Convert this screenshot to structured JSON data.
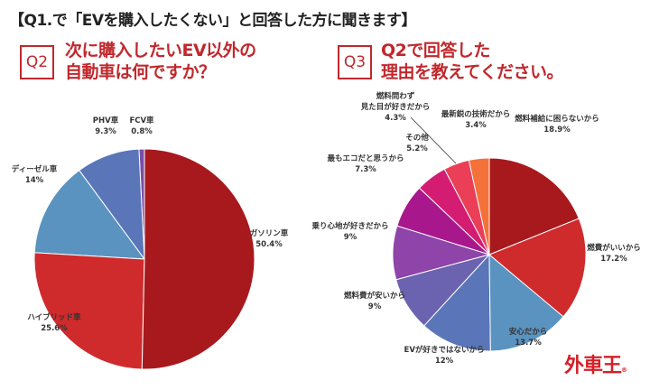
{
  "header": {
    "title": "【Q1.で「EVを購入したくない」と回答した方に聞きます】"
  },
  "q2": {
    "badge": "Q2",
    "line1": "次に購入したいEV以外の",
    "line2": "自動車は何ですか？"
  },
  "q3": {
    "badge": "Q3",
    "line1": "Q2で回答した",
    "line2": "理由を教えてください。"
  },
  "logo": {
    "text": "外車王",
    "mark": "®"
  },
  "chart_data": [
    {
      "type": "pie",
      "start": "top",
      "direction": "clockwise",
      "slices": [
        {
          "label": "ガソリン車",
          "value": 50.4,
          "display": "50.4%",
          "color": "#a8191d"
        },
        {
          "label": "ハイブリッド車",
          "value": 25.6,
          "display": "25.6%",
          "color": "#cf2a2c"
        },
        {
          "label": "ディーゼル車",
          "value": 14,
          "display": "14%",
          "color": "#5b93c0"
        },
        {
          "label": "PHV車",
          "value": 9.3,
          "display": "9.3%",
          "color": "#5a75b8"
        },
        {
          "label": "FCV車",
          "value": 0.8,
          "display": "0.8%",
          "color": "#7a4fa6"
        }
      ]
    },
    {
      "type": "pie",
      "start": "top",
      "direction": "clockwise",
      "slices": [
        {
          "label": "燃料補給に困らないから",
          "value": 18.9,
          "display": "18.9%",
          "color": "#a8191d"
        },
        {
          "label": "燃費がいいから",
          "value": 17.2,
          "display": "17.2%",
          "color": "#cf2a2c"
        },
        {
          "label": "安心だから",
          "value": 13.7,
          "display": "13.7%",
          "color": "#5b93c0"
        },
        {
          "label": "EVが好きではないから",
          "value": 12,
          "display": "12%",
          "color": "#5a75b8"
        },
        {
          "label": "燃料費が安いから",
          "value": 9,
          "display": "9%",
          "color": "#6b63b0"
        },
        {
          "label": "乗り心地が好きだから",
          "value": 9,
          "display": "9%",
          "color": "#8e44a8"
        },
        {
          "label": "最もエコだと思うから",
          "value": 7.3,
          "display": "7.3%",
          "color": "#a8188c"
        },
        {
          "label": "その他",
          "value": 5.2,
          "display": "5.2%",
          "color": "#d41c73"
        },
        {
          "label": "燃料問わず 見た目が好きだから",
          "line1": "燃料問わず",
          "line2": "見た目が好きだから",
          "value": 4.3,
          "display": "4.3%",
          "color": "#ea3f57"
        },
        {
          "label": "最新鋭の技術だから",
          "value": 3.4,
          "display": "3.4%",
          "color": "#f4713a"
        }
      ]
    }
  ]
}
